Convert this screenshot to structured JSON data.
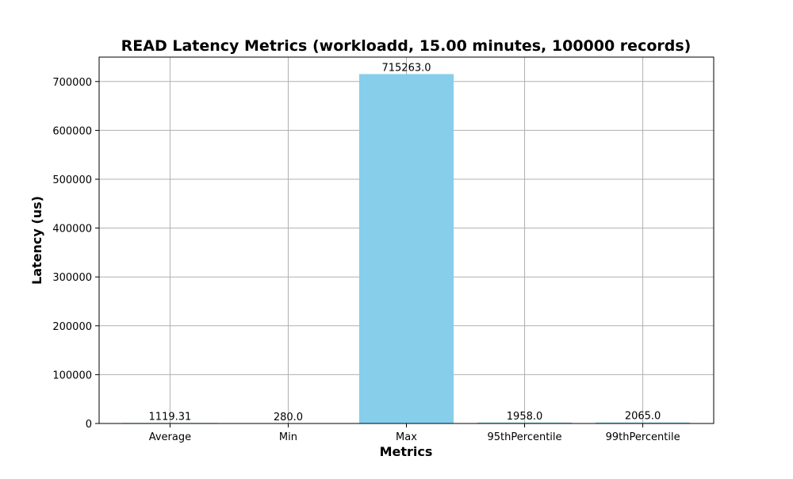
{
  "chart_data": {
    "type": "bar",
    "title": "READ Latency Metrics (workloadd, 15.00 minutes, 100000 records)",
    "xlabel": "Metrics",
    "ylabel": "Latency (us)",
    "categories": [
      "Average",
      "Min",
      "Max",
      "95thPercentile",
      "99thPercentile"
    ],
    "values": [
      1119.31,
      280.0,
      715263.0,
      1958.0,
      2065.0
    ],
    "value_labels": [
      "1119.31",
      "280.0",
      "715263.0",
      "1958.0",
      "2065.0"
    ],
    "ylim": [
      0,
      750000
    ],
    "yticks": [
      0,
      100000,
      200000,
      300000,
      400000,
      500000,
      600000,
      700000
    ],
    "ytick_labels": [
      "0",
      "100000",
      "200000",
      "300000",
      "400000",
      "500000",
      "600000",
      "700000"
    ],
    "grid": true,
    "bar_color": "#87ceeb"
  }
}
